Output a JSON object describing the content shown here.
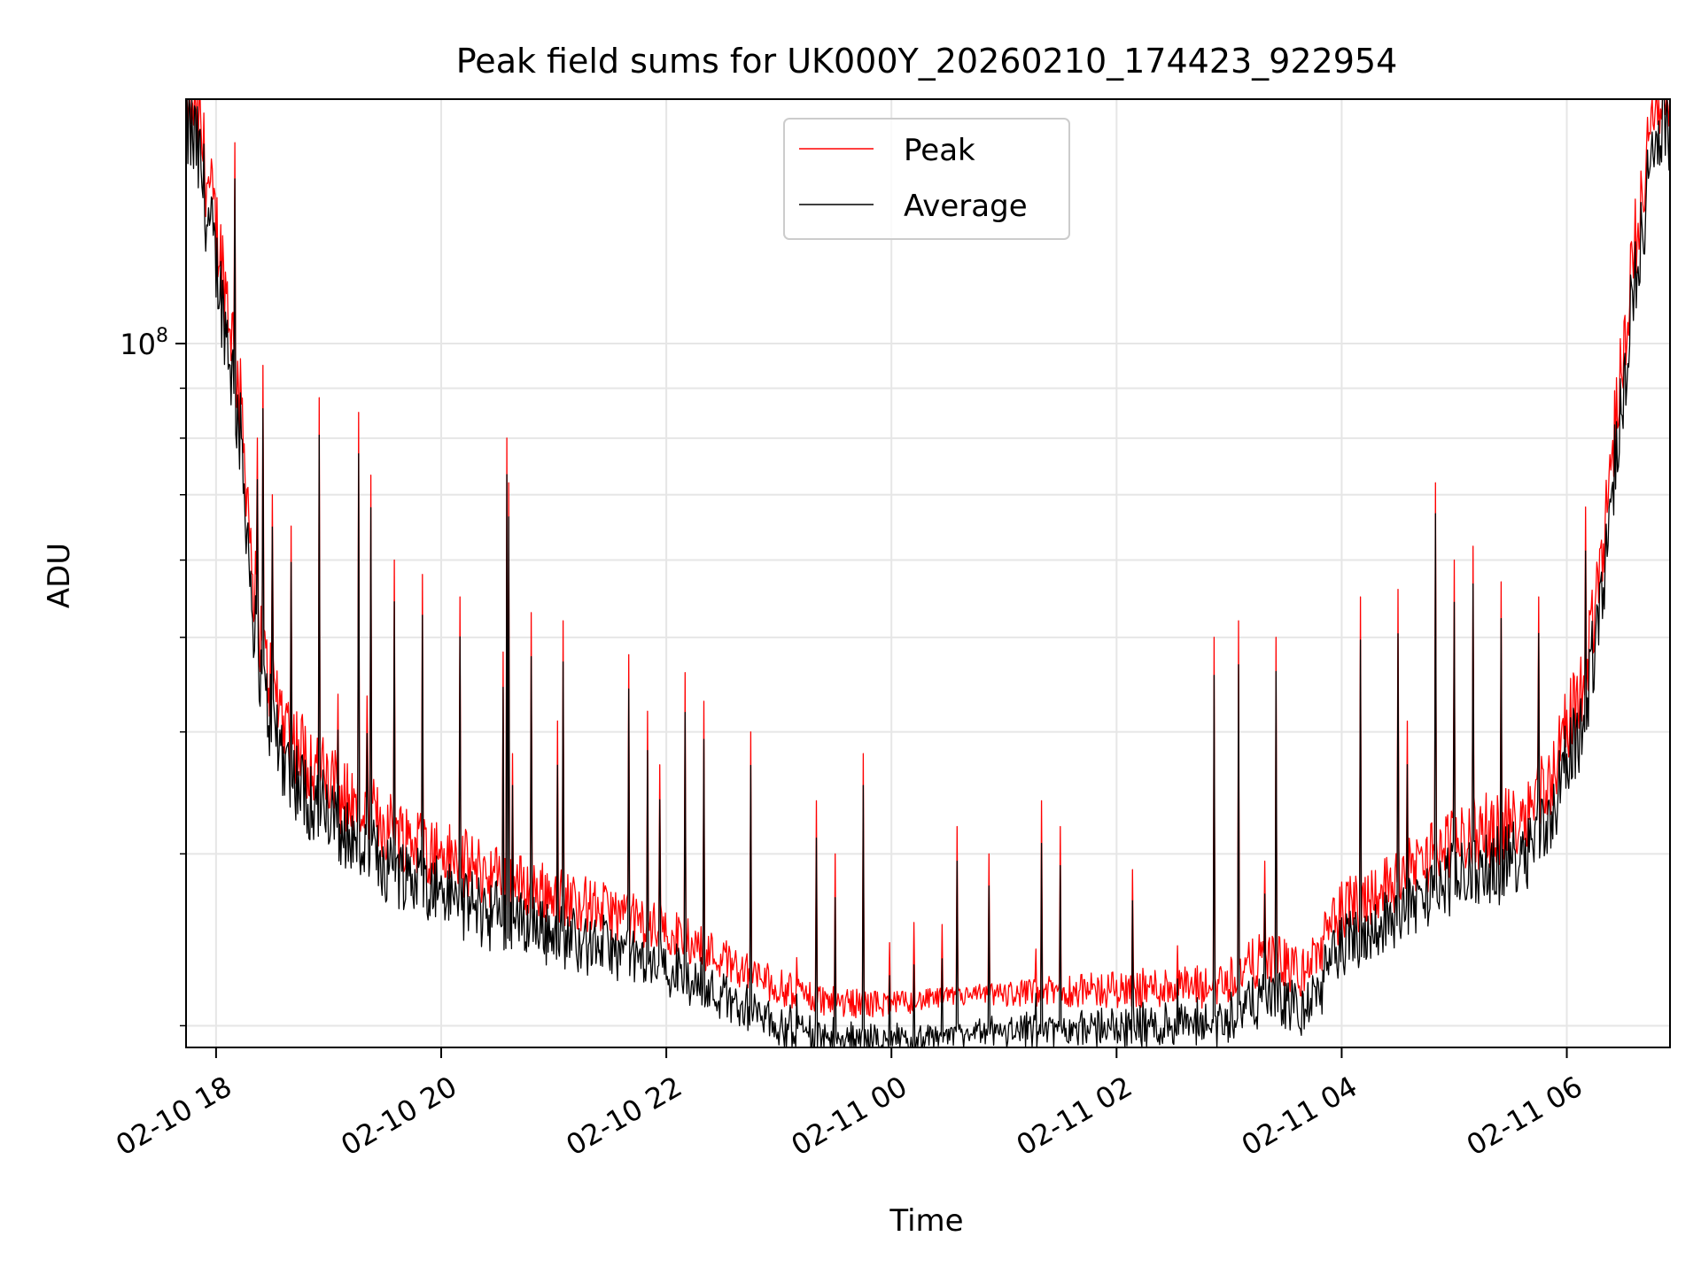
{
  "chart_data": {
    "type": "line",
    "title": "Peak field sums for UK000Y_20260210_174423_922954",
    "xlabel": "Time",
    "ylabel": "ADU",
    "y_scale": "log",
    "ylim": [
      19000000,
      178000000
    ],
    "xlim": [
      "2026-02-10T17:44",
      "2026-02-11T06:55"
    ],
    "x_ticks": [
      {
        "t": "2026-02-10T18:00",
        "label": "02-10 18"
      },
      {
        "t": "2026-02-10T20:00",
        "label": "02-10 20"
      },
      {
        "t": "2026-02-10T22:00",
        "label": "02-10 22"
      },
      {
        "t": "2026-02-11T00:00",
        "label": "02-11 00"
      },
      {
        "t": "2026-02-11T02:00",
        "label": "02-11 02"
      },
      {
        "t": "2026-02-11T04:00",
        "label": "02-11 04"
      },
      {
        "t": "2026-02-11T06:00",
        "label": "02-11 06"
      }
    ],
    "y_major_ticks": [
      {
        "value": 100000000,
        "base": "10",
        "exp": "8"
      }
    ],
    "y_minor_ticks": [
      20000000,
      30000000,
      40000000,
      50000000,
      60000000,
      70000000,
      80000000,
      90000000,
      200000000
    ],
    "grid": true,
    "legend_position": "upper-center",
    "colors": {
      "peak": "#ff0000",
      "average": "#000000",
      "grid": "#e6e6e6",
      "legend_border": "#cccccc"
    },
    "series": [
      {
        "name": "Peak",
        "color": "#ff0000",
        "baseline_points": [
          [
            "2026-02-10T17:44",
            175000000
          ],
          [
            "2026-02-10T17:50",
            165000000
          ],
          [
            "2026-02-10T17:56",
            138000000
          ],
          [
            "2026-02-10T18:02",
            120000000
          ],
          [
            "2026-02-10T18:08",
            100000000
          ],
          [
            "2026-02-10T18:14",
            80000000
          ],
          [
            "2026-02-10T18:20",
            55000000
          ],
          [
            "2026-02-10T18:26",
            45000000
          ],
          [
            "2026-02-10T18:40",
            38000000
          ],
          [
            "2026-02-10T19:00",
            34000000
          ],
          [
            "2026-02-10T19:30",
            31000000
          ],
          [
            "2026-02-10T20:00",
            29000000
          ],
          [
            "2026-02-10T20:30",
            27500000
          ],
          [
            "2026-02-10T21:00",
            26500000
          ],
          [
            "2026-02-10T21:30",
            25500000
          ],
          [
            "2026-02-10T22:00",
            24500000
          ],
          [
            "2026-02-10T22:30",
            23000000
          ],
          [
            "2026-02-10T23:00",
            21500000
          ],
          [
            "2026-02-10T23:30",
            20800000
          ],
          [
            "2026-02-11T00:00",
            20800000
          ],
          [
            "2026-02-11T00:30",
            21200000
          ],
          [
            "2026-02-11T01:00",
            21300000
          ],
          [
            "2026-02-11T01:30",
            21400000
          ],
          [
            "2026-02-11T02:00",
            21400000
          ],
          [
            "2026-02-11T02:30",
            21500000
          ],
          [
            "2026-02-11T02:50",
            21300000
          ],
          [
            "2026-02-11T03:20",
            23000000
          ],
          [
            "2026-02-11T03:40",
            22000000
          ],
          [
            "2026-02-11T04:00",
            25500000
          ],
          [
            "2026-02-11T04:30",
            27500000
          ],
          [
            "2026-02-11T05:00",
            30000000
          ],
          [
            "2026-02-11T05:30",
            31000000
          ],
          [
            "2026-02-11T05:50",
            34000000
          ],
          [
            "2026-02-11T06:10",
            44000000
          ],
          [
            "2026-02-11T06:20",
            62000000
          ],
          [
            "2026-02-11T06:30",
            95000000
          ],
          [
            "2026-02-11T06:40",
            140000000
          ],
          [
            "2026-02-11T06:50",
            172000000
          ],
          [
            "2026-02-11T06:55",
            175000000
          ]
        ],
        "spikes": [
          [
            "2026-02-10T18:22",
            80000000
          ],
          [
            "2026-02-10T18:25",
            95000000
          ],
          [
            "2026-02-10T18:30",
            70000000
          ],
          [
            "2026-02-10T18:40",
            65000000
          ],
          [
            "2026-02-10T18:55",
            88000000
          ],
          [
            "2026-02-10T19:16",
            85000000
          ],
          [
            "2026-02-10T19:35",
            60000000
          ],
          [
            "2026-02-10T19:50",
            58000000
          ],
          [
            "2026-02-10T20:10",
            55000000
          ],
          [
            "2026-02-10T20:35",
            80000000
          ],
          [
            "2026-02-10T20:36",
            72000000
          ],
          [
            "2026-02-10T20:48",
            53000000
          ],
          [
            "2026-02-10T21:05",
            52000000
          ],
          [
            "2026-02-10T21:40",
            48000000
          ],
          [
            "2026-02-10T21:50",
            42000000
          ],
          [
            "2026-02-10T22:10",
            46000000
          ],
          [
            "2026-02-10T22:20",
            43000000
          ],
          [
            "2026-02-10T22:45",
            40000000
          ],
          [
            "2026-02-10T23:20",
            34000000
          ],
          [
            "2026-02-10T23:30",
            30000000
          ],
          [
            "2026-02-10T23:45",
            38000000
          ],
          [
            "2026-02-11T00:35",
            32000000
          ],
          [
            "2026-02-11T00:52",
            30000000
          ],
          [
            "2026-02-11T01:20",
            34000000
          ],
          [
            "2026-02-11T01:30",
            32000000
          ],
          [
            "2026-02-11T02:52",
            50000000
          ],
          [
            "2026-02-11T03:05",
            52000000
          ],
          [
            "2026-02-11T03:25",
            50000000
          ],
          [
            "2026-02-11T04:10",
            55000000
          ],
          [
            "2026-02-11T04:30",
            56000000
          ],
          [
            "2026-02-11T04:50",
            72000000
          ],
          [
            "2026-02-11T05:00",
            60000000
          ],
          [
            "2026-02-11T05:10",
            62000000
          ],
          [
            "2026-02-11T05:25",
            57000000
          ],
          [
            "2026-02-11T05:45",
            55000000
          ],
          [
            "2026-02-11T06:10",
            68000000
          ]
        ]
      },
      {
        "name": "Average",
        "color": "#000000",
        "note_ratio_to_peak": 0.93
      }
    ]
  }
}
